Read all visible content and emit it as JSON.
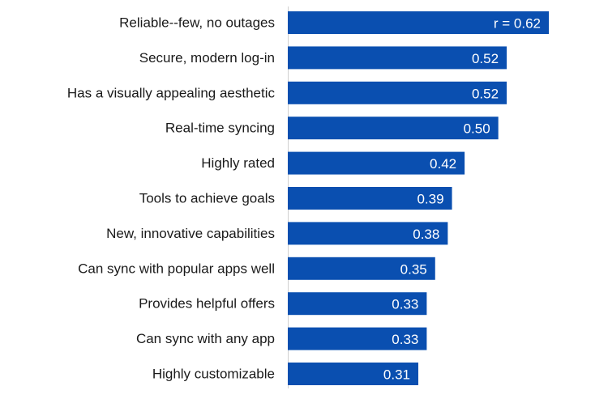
{
  "chart_data": {
    "type": "bar",
    "orientation": "horizontal",
    "categories": [
      "Reliable--few, no outages",
      "Secure, modern log-in",
      "Has a visually appealing aesthetic",
      "Real-time syncing",
      "Highly rated",
      "Tools to achieve goals",
      "New, innovative capabilities",
      "Can sync with popular apps well",
      "Provides helpful offers",
      "Can sync with any app",
      "Highly customizable"
    ],
    "values": [
      0.62,
      0.52,
      0.52,
      0.5,
      0.42,
      0.39,
      0.38,
      0.35,
      0.33,
      0.33,
      0.31
    ],
    "data_labels": [
      "r = 0.62",
      "0.52",
      "0.52",
      "0.50",
      "0.42",
      "0.39",
      "0.38",
      "0.35",
      "0.33",
      "0.33",
      "0.31"
    ],
    "bar_color": "#0a4fb0",
    "title": "",
    "xlabel": "",
    "ylabel": "",
    "xlim": [
      0,
      0.62
    ],
    "grid": false
  }
}
